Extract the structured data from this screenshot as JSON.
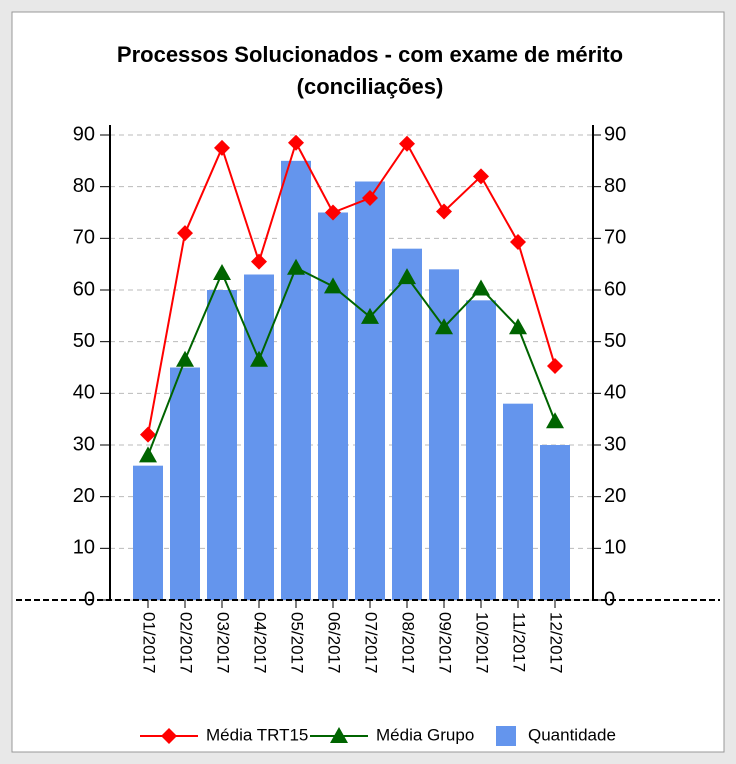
{
  "chart_data": {
    "type": "bar",
    "title": [
      "Processos Solucionados - com exame de mérito",
      "(conciliações)"
    ],
    "categories": [
      "01/2017",
      "02/2017",
      "03/2017",
      "04/2017",
      "05/2017",
      "06/2017",
      "07/2017",
      "08/2017",
      "09/2017",
      "10/2017",
      "11/2017",
      "12/2017"
    ],
    "series": [
      {
        "name": "Média TRT15",
        "type": "line",
        "marker": "diamond",
        "color": "#ff0000",
        "values": [
          32,
          71,
          87.5,
          65.5,
          88.5,
          75,
          77.8,
          88.3,
          75.2,
          82,
          69.3,
          45.3
        ]
      },
      {
        "name": "Média Grupo",
        "type": "line",
        "marker": "triangle",
        "color": "#006400",
        "values": [
          28,
          46.5,
          63.3,
          46.5,
          64.3,
          60.7,
          54.8,
          62.5,
          52.8,
          60.3,
          52.8,
          34.6
        ]
      },
      {
        "name": "Quantidade",
        "type": "bar",
        "color": "#6495ed",
        "values": [
          26,
          45,
          60,
          63,
          85,
          75,
          81,
          68,
          64,
          58,
          38,
          30
        ]
      }
    ],
    "ylim": [
      0,
      90
    ],
    "yticks": [
      0,
      10,
      20,
      30,
      40,
      50,
      60,
      70,
      80,
      90
    ],
    "y2lim": [
      0,
      90
    ],
    "y2ticks": [
      0,
      10,
      20,
      30,
      40,
      50,
      60,
      70,
      80,
      90
    ],
    "grid": true,
    "legend": "bottom"
  }
}
